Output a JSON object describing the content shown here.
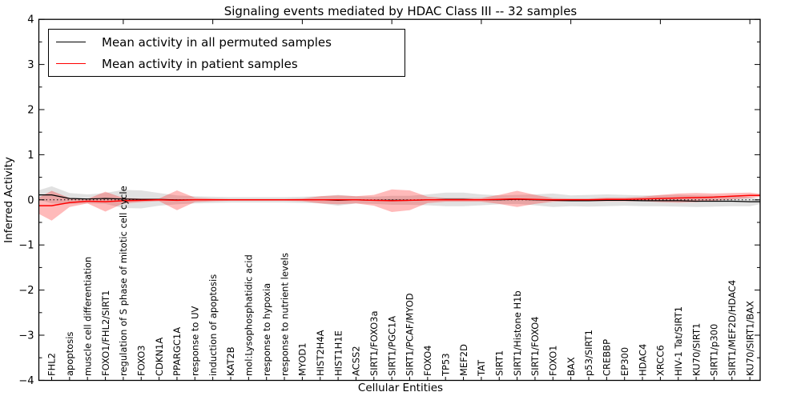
{
  "figure": {
    "title": "Signaling events mediated by HDAC Class III -- 32 samples",
    "xlabel": "Cellular Entities",
    "ylabel": "Inferred Activity"
  },
  "legend": {
    "entries": [
      {
        "label": "Mean activity in all permuted samples",
        "color": "#000000"
      },
      {
        "label": "Mean activity in patient samples",
        "color": "#ff0000"
      }
    ]
  },
  "chart_data": {
    "type": "line",
    "title": "Signaling events mediated by HDAC Class III -- 32 samples",
    "xlabel": "Cellular Entities",
    "ylabel": "Inferred Activity",
    "ylim": [
      -4,
      4
    ],
    "yticks": [
      -4,
      -3,
      -2,
      -1,
      0,
      1,
      2,
      3,
      4
    ],
    "ytick_labels": [
      "−4",
      "−3",
      "−2",
      "−1",
      "0",
      "1",
      "2",
      "3",
      "4"
    ],
    "grid": false,
    "legend_position": "upper left",
    "categories": [
      "FHL2",
      "apoptosis",
      "muscle cell differentiation",
      "FOXO1/FHL2/SIRT1",
      "regulation of S phase of mitotic cell cycle",
      "FOXO3",
      "CDKN1A",
      "PPARGC1A",
      "response to UV",
      "induction of apoptosis",
      "KAT2B",
      "mol:Lysophosphatidic acid",
      "response to hypoxia",
      "response to nutrient levels",
      "MYOD1",
      "HIST2H4A",
      "HIST1H1E",
      "ACSS2",
      "SIRT1/FOXO3a",
      "SIRT1/PGC1A",
      "SIRT1/PCAF/MYOD",
      "FOXO4",
      "TP53",
      "MEF2D",
      "TAT",
      "SIRT1",
      "SIRT1/Histone H1b",
      "SIRT1/FOXO4",
      "FOXO1",
      "BAX",
      "p53/SIRT1",
      "CREBBP",
      "EP300",
      "HDAC4",
      "XRCC6",
      "HIV-1 Tat/SIRT1",
      "KU70/SIRT1",
      "SIRT1/p300",
      "SIRT1/MEF2D/HDAC4",
      "KU70/SIRT1/BAX"
    ],
    "series": [
      {
        "name": "Mean activity in all permuted samples",
        "color": "#000000",
        "style": "solid",
        "values": [
          0.11,
          0.03,
          0.02,
          0.03,
          0.02,
          0.01,
          0.01,
          0.0,
          0.0,
          0.0,
          0.0,
          0.0,
          0.0,
          0.0,
          0.0,
          0.0,
          -0.01,
          0.0,
          -0.01,
          -0.01,
          -0.01,
          0.0,
          0.01,
          0.01,
          0.0,
          0.0,
          0.01,
          0.0,
          -0.01,
          -0.02,
          -0.02,
          -0.01,
          -0.01,
          -0.02,
          -0.02,
          -0.02,
          -0.03,
          -0.03,
          -0.03,
          -0.04
        ]
      },
      {
        "name": "Mean activity in patient samples",
        "color": "#ff0000",
        "style": "solid",
        "values": [
          -0.13,
          -0.06,
          -0.03,
          -0.04,
          -0.02,
          -0.01,
          0.0,
          -0.01,
          0.0,
          0.0,
          0.0,
          0.0,
          0.0,
          0.0,
          0.0,
          0.0,
          0.0,
          0.0,
          -0.01,
          -0.02,
          -0.01,
          0.0,
          0.0,
          0.0,
          0.0,
          0.01,
          0.02,
          0.01,
          0.0,
          0.0,
          0.0,
          0.01,
          0.01,
          0.02,
          0.03,
          0.04,
          0.05,
          0.06,
          0.08,
          0.1
        ]
      }
    ],
    "bands": [
      {
        "name": "permuted-samples-spread-band",
        "color": "#aaaaaa",
        "opacity": 0.35,
        "center_series": 0,
        "half_widths": [
          0.19,
          0.12,
          0.1,
          0.12,
          0.2,
          0.2,
          0.14,
          0.1,
          0.08,
          0.07,
          0.06,
          0.06,
          0.06,
          0.06,
          0.07,
          0.08,
          0.12,
          0.08,
          0.08,
          0.1,
          0.1,
          0.12,
          0.15,
          0.15,
          0.12,
          0.1,
          0.1,
          0.12,
          0.15,
          0.12,
          0.13,
          0.13,
          0.12,
          0.12,
          0.12,
          0.13,
          0.13,
          0.12,
          0.11,
          0.1
        ]
      },
      {
        "name": "patient-samples-spread-band",
        "color": "#ff0000",
        "opacity": 0.27,
        "center_series": 1,
        "half_widths": [
          0.33,
          0.1,
          0.05,
          0.22,
          0.06,
          0.04,
          0.03,
          0.22,
          0.05,
          0.03,
          0.02,
          0.02,
          0.02,
          0.02,
          0.03,
          0.08,
          0.1,
          0.08,
          0.12,
          0.25,
          0.22,
          0.07,
          0.04,
          0.04,
          0.04,
          0.1,
          0.18,
          0.1,
          0.04,
          0.03,
          0.03,
          0.04,
          0.04,
          0.05,
          0.08,
          0.1,
          0.1,
          0.08,
          0.07,
          0.06
        ]
      }
    ],
    "zero_line": {
      "y": 0,
      "style": "dashed",
      "color": "#000000"
    }
  }
}
